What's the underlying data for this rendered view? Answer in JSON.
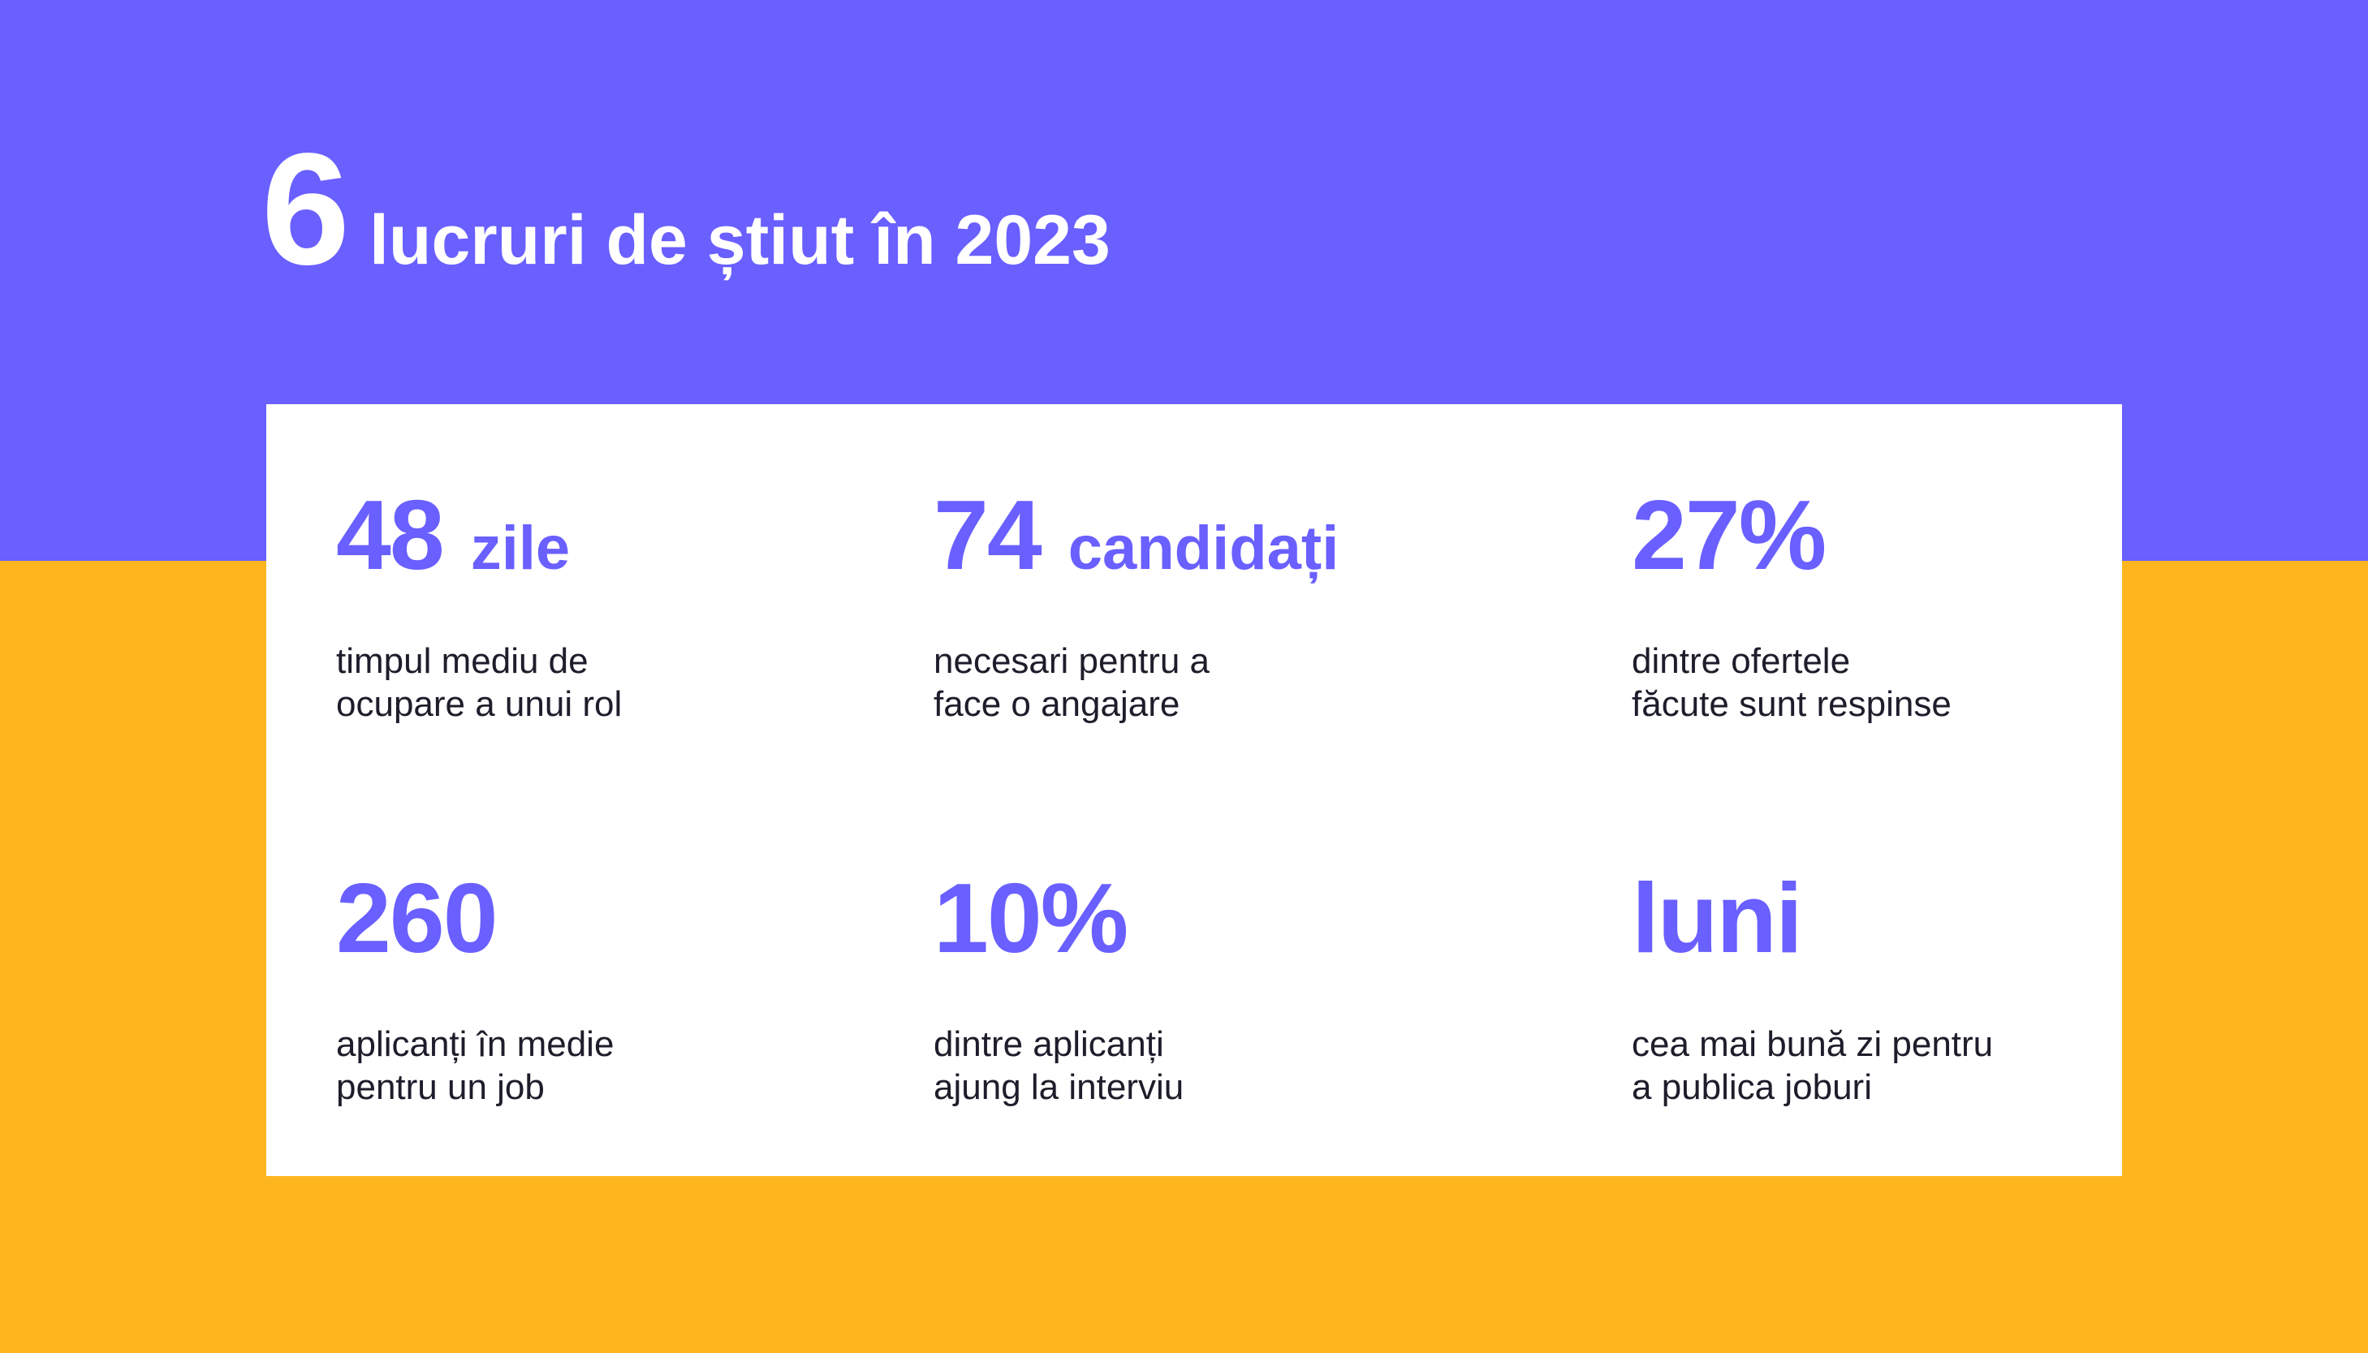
{
  "colors": {
    "primary": "#6A5FFF",
    "secondary": "#FFB61E",
    "card": "#FFFFFF",
    "text_dark": "#1D1D2B"
  },
  "title": {
    "number": "6",
    "text": "lucruri de știut în 2023"
  },
  "stats": [
    {
      "value": "48",
      "unit": "zile",
      "desc_line1": "timpul mediu de",
      "desc_line2": "ocupare a unui rol"
    },
    {
      "value": "74",
      "unit": "candidați",
      "desc_line1": "necesari pentru a",
      "desc_line2": "face o angajare"
    },
    {
      "value": "27%",
      "unit": "",
      "desc_line1": "dintre ofertele",
      "desc_line2": "făcute sunt respinse"
    },
    {
      "value": "260",
      "unit": "",
      "desc_line1": "aplicanți în medie",
      "desc_line2": "pentru un job"
    },
    {
      "value": "10%",
      "unit": "",
      "desc_line1": "dintre aplicanți",
      "desc_line2": "ajung la interviu"
    },
    {
      "value": "luni",
      "unit": "",
      "desc_line1": "cea mai bună zi pentru",
      "desc_line2": "a publica joburi"
    }
  ]
}
